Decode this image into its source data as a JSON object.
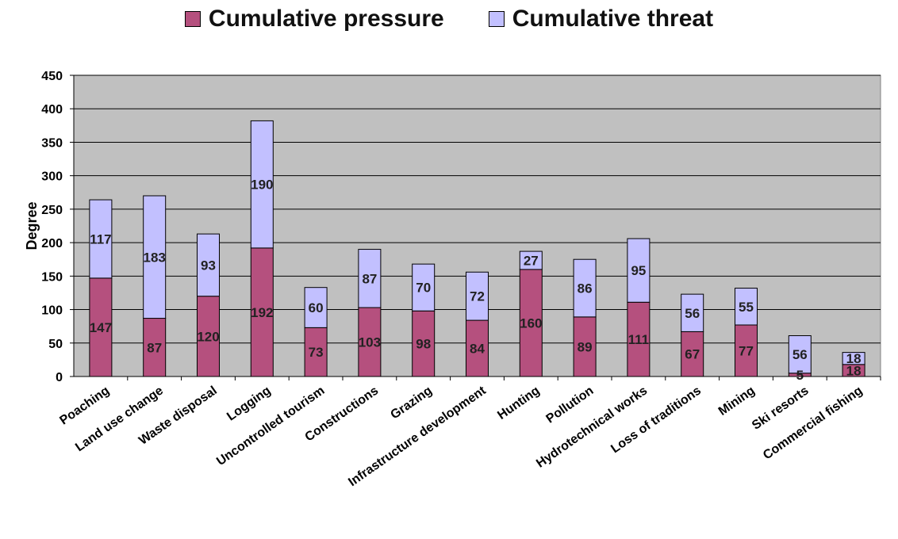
{
  "chart_data": {
    "type": "bar",
    "stacked": true,
    "title": "",
    "xlabel": "",
    "ylabel": "Degree",
    "ylim": [
      0,
      450
    ],
    "yticks": [
      0,
      50,
      100,
      150,
      200,
      250,
      300,
      350,
      400,
      450
    ],
    "grid": true,
    "legend_position": "top",
    "categories": [
      "Poaching",
      "Land use change",
      "Waste disposal",
      "Logging",
      "Uncontrolled tourism",
      "Constructions",
      "Grazing",
      "Infrastructure development",
      "Hunting",
      "Pollution",
      "Hydrotechnical works",
      "Loss of traditions",
      "Mining",
      "Ski resorts",
      "Commercial fishing"
    ],
    "series": [
      {
        "name": "Cumulative pressure",
        "color": "#b5507e",
        "values": [
          147,
          87,
          120,
          192,
          73,
          103,
          98,
          84,
          160,
          89,
          111,
          67,
          77,
          5,
          18
        ]
      },
      {
        "name": "Cumulative threat",
        "color": "#c2c0ff",
        "values": [
          117,
          183,
          93,
          190,
          60,
          87,
          70,
          72,
          27,
          86,
          95,
          56,
          55,
          56,
          18
        ]
      }
    ],
    "plot_background": "#c0c0c0"
  }
}
